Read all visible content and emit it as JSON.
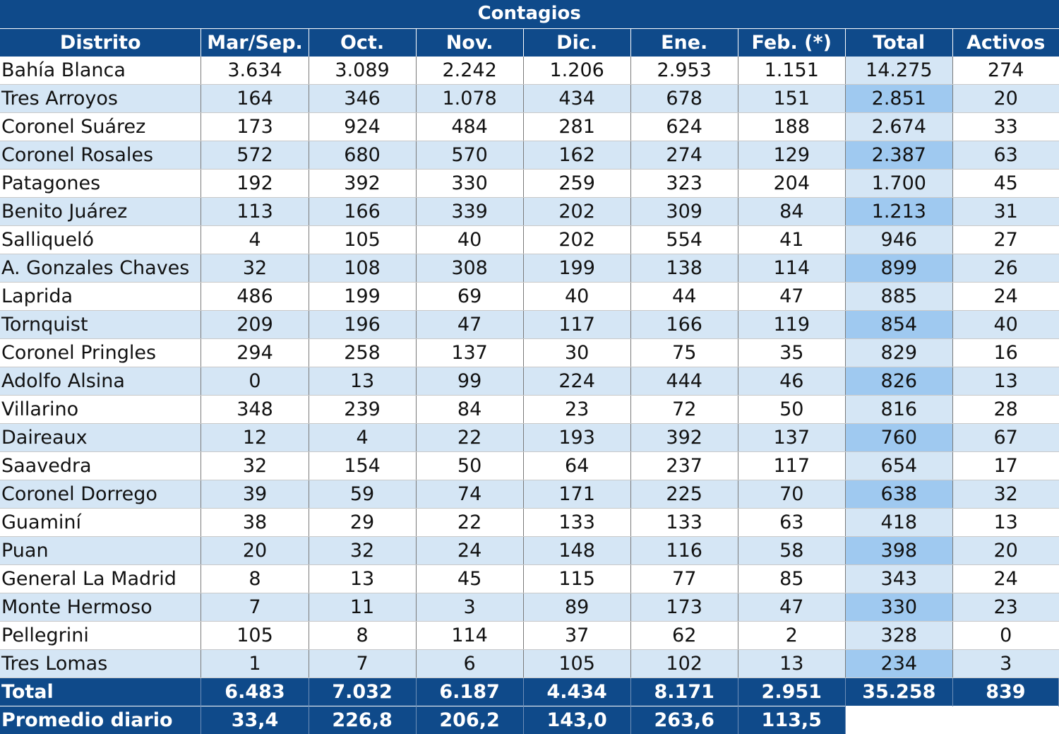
{
  "title": "Contagios",
  "columns": [
    "Distrito",
    "Mar/Sep.",
    "Oct.",
    "Nov.",
    "Dic.",
    "Ene.",
    "Feb. (*)",
    "Total",
    "Activos"
  ],
  "rows": [
    [
      "Bahía Blanca",
      "3.634",
      "3.089",
      "2.242",
      "1.206",
      "2.953",
      "1.151",
      "14.275",
      "274"
    ],
    [
      "Tres Arroyos",
      "164",
      "346",
      "1.078",
      "434",
      "678",
      "151",
      "2.851",
      "20"
    ],
    [
      "Coronel Suárez",
      "173",
      "924",
      "484",
      "281",
      "624",
      "188",
      "2.674",
      "33"
    ],
    [
      "Coronel Rosales",
      "572",
      "680",
      "570",
      "162",
      "274",
      "129",
      "2.387",
      "63"
    ],
    [
      "Patagones",
      "192",
      "392",
      "330",
      "259",
      "323",
      "204",
      "1.700",
      "45"
    ],
    [
      "Benito Juárez",
      "113",
      "166",
      "339",
      "202",
      "309",
      "84",
      "1.213",
      "31"
    ],
    [
      "Salliqueló",
      "4",
      "105",
      "40",
      "202",
      "554",
      "41",
      "946",
      "27"
    ],
    [
      "A. Gonzales Chaves",
      "32",
      "108",
      "308",
      "199",
      "138",
      "114",
      "899",
      "26"
    ],
    [
      "Laprida",
      "486",
      "199",
      "69",
      "40",
      "44",
      "47",
      "885",
      "24"
    ],
    [
      "Tornquist",
      "209",
      "196",
      "47",
      "117",
      "166",
      "119",
      "854",
      "40"
    ],
    [
      "Coronel Pringles",
      "294",
      "258",
      "137",
      "30",
      "75",
      "35",
      "829",
      "16"
    ],
    [
      "Adolfo Alsina",
      "0",
      "13",
      "99",
      "224",
      "444",
      "46",
      "826",
      "13"
    ],
    [
      "Villarino",
      "348",
      "239",
      "84",
      "23",
      "72",
      "50",
      "816",
      "28"
    ],
    [
      "Daireaux",
      "12",
      "4",
      "22",
      "193",
      "392",
      "137",
      "760",
      "67"
    ],
    [
      "Saavedra",
      "32",
      "154",
      "50",
      "64",
      "237",
      "117",
      "654",
      "17"
    ],
    [
      "Coronel Dorrego",
      "39",
      "59",
      "74",
      "171",
      "225",
      "70",
      "638",
      "32"
    ],
    [
      "Guaminí",
      "38",
      "29",
      "22",
      "133",
      "133",
      "63",
      "418",
      "13"
    ],
    [
      "Puan",
      "20",
      "32",
      "24",
      "148",
      "116",
      "58",
      "398",
      "20"
    ],
    [
      "General La Madrid",
      "8",
      "13",
      "45",
      "115",
      "77",
      "85",
      "343",
      "24"
    ],
    [
      "Monte Hermoso",
      "7",
      "11",
      "3",
      "89",
      "173",
      "47",
      "330",
      "23"
    ],
    [
      "Pellegrini",
      "105",
      "8",
      "114",
      "37",
      "62",
      "2",
      "328",
      "0"
    ],
    [
      "Tres Lomas",
      "1",
      "7",
      "6",
      "105",
      "102",
      "13",
      "234",
      "3"
    ]
  ],
  "total_row": [
    "Total",
    "6.483",
    "7.032",
    "6.187",
    "4.434",
    "8.171",
    "2.951",
    "35.258",
    "839"
  ],
  "average_row": [
    "Promedio diario",
    "33,4",
    "226,8",
    "206,2",
    "143,0",
    "263,6",
    "113,5"
  ],
  "colors": {
    "header_bg": "#0f4a8a",
    "band_light": "#d5e6f5",
    "band_total": "#9fc9f0"
  }
}
